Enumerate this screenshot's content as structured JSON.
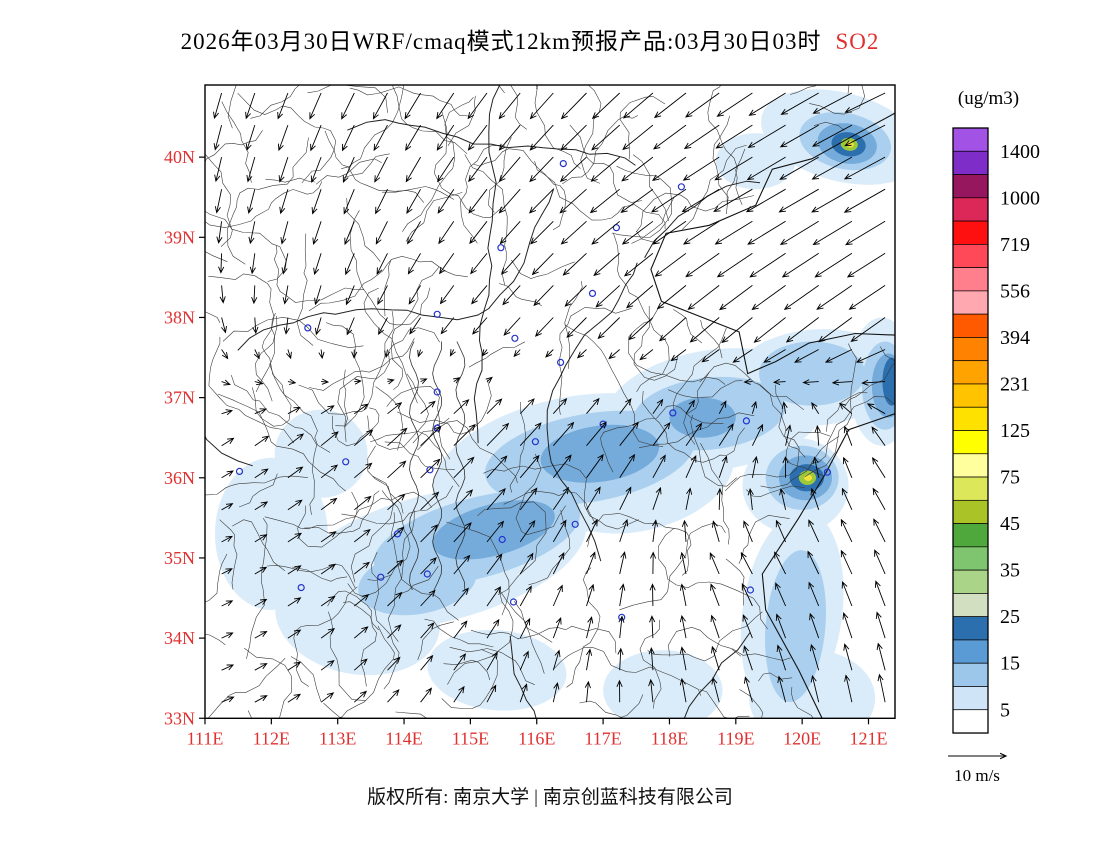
{
  "title": {
    "main": "2026年03月30日WRF/cmaq模式12km预报产品:03月30日03时",
    "species": "SO2"
  },
  "footer": {
    "left": "版权所有: 南京大学",
    "divider": "|",
    "right": "南京创蓝科技有限公司"
  },
  "chart_data": {
    "type": "map",
    "pollutant": "SO2",
    "units": "(ug/m3)",
    "lon_range": [
      111,
      121.4
    ],
    "lat_range": [
      33,
      40.9
    ],
    "lon_tick_labels": [
      "111E",
      "112E",
      "113E",
      "114E",
      "115E",
      "116E",
      "117E",
      "118E",
      "119E",
      "120E",
      "121E"
    ],
    "lat_tick_labels": [
      "40N",
      "39N",
      "38N",
      "37N",
      "36N",
      "35N",
      "34N",
      "33N"
    ],
    "axis_label_color": "#e03030",
    "colorbar": {
      "labels": [
        "1400",
        "1000",
        "719",
        "556",
        "394",
        "231",
        "125",
        "75",
        "45",
        "35",
        "25",
        "15",
        "5"
      ],
      "colors": [
        "#A352E6",
        "#7F2DC8",
        "#97175E",
        "#DC2858",
        "#FF1010",
        "#FF4858",
        "#FF808C",
        "#FFA8B0",
        "#FF5A00",
        "#FF8200",
        "#FFA300",
        "#FFC300",
        "#FFE100",
        "#FFFF00",
        "#FFFF9E",
        "#DCE85A",
        "#AAC428",
        "#4FA83C",
        "#7FC46E",
        "#AAD488",
        "#D2DFC0",
        "#2C6FAE",
        "#5B9BD5",
        "#9CC7EB",
        "#CFE5F7",
        "#FFFFFF"
      ]
    },
    "wind_scale": {
      "label": "10 m/s"
    },
    "wind_grid": {
      "lons": [
        111,
        113,
        115,
        117,
        119,
        121.4
      ],
      "lats": [
        33,
        35,
        36.5,
        38,
        39.5,
        40.9
      ],
      "dir": [
        [
          20,
          40,
          60,
          90,
          105,
          100
        ],
        [
          25,
          35,
          50,
          70,
          120,
          115
        ],
        [
          30,
          40,
          45,
          50,
          55,
          130
        ],
        [
          290,
          250,
          230,
          225,
          220,
          215
        ],
        [
          260,
          250,
          235,
          220,
          210,
          210
        ],
        [
          255,
          245,
          235,
          225,
          215,
          205
        ]
      ],
      "speed": [
        [
          0.25,
          0.3,
          0.35,
          0.4,
          0.5,
          0.55
        ],
        [
          0.2,
          0.35,
          0.5,
          0.45,
          0.45,
          0.5
        ],
        [
          0.25,
          0.45,
          0.6,
          0.6,
          0.5,
          0.45
        ],
        [
          0.3,
          0.35,
          0.4,
          0.55,
          0.75,
          0.8
        ],
        [
          0.45,
          0.5,
          0.55,
          0.7,
          0.85,
          0.9
        ],
        [
          0.5,
          0.55,
          0.6,
          0.7,
          0.8,
          0.85
        ]
      ]
    },
    "blob_colors": [
      "#DAECF9",
      "#ABD0EF",
      "#74ABDB",
      "#2C6FAE",
      "#9CC83C",
      "#F2E33C"
    ],
    "so2_blobs": [
      [
        114.5,
        35.0,
        2.3,
        0.8,
        -14,
        0
      ],
      [
        116.5,
        36.15,
        2.1,
        0.85,
        -12,
        0
      ],
      [
        118.7,
        36.85,
        1.7,
        0.75,
        -8,
        0
      ],
      [
        120.2,
        37.25,
        1.3,
        0.6,
        -5,
        0
      ],
      [
        113.3,
        34.25,
        1.25,
        0.7,
        10,
        0
      ],
      [
        112.0,
        35.3,
        0.85,
        0.95,
        0,
        0
      ],
      [
        112.75,
        36.3,
        0.7,
        0.55,
        0,
        0
      ],
      [
        115.4,
        33.6,
        1.05,
        0.5,
        5,
        0
      ],
      [
        117.9,
        33.35,
        0.9,
        0.5,
        0,
        0
      ],
      [
        119.85,
        34.3,
        0.75,
        1.3,
        8,
        0
      ],
      [
        120.15,
        33.25,
        0.95,
        0.6,
        0,
        0
      ],
      [
        120.6,
        40.25,
        1.25,
        0.55,
        15,
        0
      ],
      [
        119.3,
        39.95,
        0.6,
        0.35,
        0,
        0
      ],
      [
        121.2,
        37.2,
        0.5,
        0.8,
        0,
        0
      ],
      [
        117.6,
        36.0,
        1.4,
        0.65,
        -15,
        0
      ],
      [
        119.9,
        35.9,
        0.8,
        0.6,
        0,
        0
      ],
      [
        115.1,
        35.25,
        1.6,
        0.5,
        -15,
        1
      ],
      [
        116.8,
        36.25,
        1.6,
        0.55,
        -10,
        1
      ],
      [
        118.6,
        36.8,
        1.15,
        0.45,
        -6,
        1
      ],
      [
        114.2,
        34.7,
        0.9,
        0.4,
        -10,
        1
      ],
      [
        120.15,
        37.3,
        0.8,
        0.4,
        0,
        1
      ],
      [
        119.9,
        34.15,
        0.45,
        0.95,
        5,
        1
      ],
      [
        120.65,
        40.2,
        0.7,
        0.35,
        12,
        1
      ],
      [
        121.25,
        37.15,
        0.35,
        0.55,
        0,
        1
      ],
      [
        120.0,
        36.0,
        0.55,
        0.4,
        0,
        1
      ],
      [
        115.35,
        35.35,
        0.95,
        0.32,
        -15,
        2
      ],
      [
        116.95,
        36.3,
        0.9,
        0.35,
        -8,
        2
      ],
      [
        118.5,
        36.75,
        0.5,
        0.25,
        0,
        2
      ],
      [
        120.05,
        36.0,
        0.4,
        0.28,
        0,
        2
      ],
      [
        120.68,
        40.17,
        0.45,
        0.25,
        10,
        2
      ],
      [
        121.3,
        37.15,
        0.25,
        0.4,
        0,
        2
      ],
      [
        120.07,
        36.0,
        0.26,
        0.17,
        0,
        3
      ],
      [
        120.7,
        40.16,
        0.26,
        0.15,
        10,
        3
      ],
      [
        121.35,
        37.2,
        0.14,
        0.3,
        0,
        3
      ],
      [
        120.08,
        36.0,
        0.13,
        0.09,
        0,
        4
      ],
      [
        120.71,
        40.16,
        0.13,
        0.08,
        10,
        4
      ],
      [
        120.09,
        36.0,
        0.06,
        0.04,
        0,
        5
      ],
      [
        120.72,
        40.16,
        0.06,
        0.04,
        10,
        5
      ]
    ],
    "cities": [
      [
        116.4,
        39.92
      ],
      [
        117.2,
        39.12
      ],
      [
        118.18,
        39.63
      ],
      [
        115.46,
        38.87
      ],
      [
        114.5,
        38.04
      ],
      [
        112.55,
        37.87
      ],
      [
        114.5,
        37.07
      ],
      [
        114.5,
        36.62
      ],
      [
        114.39,
        36.1
      ],
      [
        113.9,
        35.3
      ],
      [
        113.65,
        34.76
      ],
      [
        112.45,
        34.63
      ],
      [
        114.35,
        34.8
      ],
      [
        117.0,
        36.67
      ],
      [
        118.05,
        36.81
      ],
      [
        119.16,
        36.71
      ],
      [
        120.38,
        36.07
      ],
      [
        115.98,
        36.45
      ],
      [
        116.36,
        37.44
      ],
      [
        116.84,
        38.3
      ],
      [
        115.67,
        37.74
      ],
      [
        115.48,
        35.23
      ],
      [
        116.58,
        35.42
      ],
      [
        117.28,
        34.26
      ],
      [
        115.65,
        34.45
      ],
      [
        119.22,
        34.6
      ],
      [
        111.52,
        36.08
      ],
      [
        113.12,
        36.2
      ]
    ],
    "coastlines": {
      "bohai": [
        [
          121.4,
          40.55
        ],
        [
          120.8,
          40.28
        ],
        [
          120.15,
          39.98
        ],
        [
          119.55,
          39.85
        ],
        [
          119.3,
          39.4
        ],
        [
          118.6,
          39.15
        ],
        [
          117.95,
          39.05
        ],
        [
          117.72,
          38.6
        ],
        [
          117.88,
          38.2
        ],
        [
          118.5,
          38.0
        ],
        [
          119.05,
          37.82
        ],
        [
          119.18,
          37.3
        ],
        [
          119.6,
          37.45
        ],
        [
          120.1,
          37.68
        ],
        [
          120.8,
          37.8
        ],
        [
          121.4,
          37.78
        ]
      ],
      "yellow_sea": [
        [
          121.4,
          36.8
        ],
        [
          120.7,
          36.6
        ],
        [
          120.35,
          36.05
        ],
        [
          119.95,
          35.5
        ],
        [
          119.4,
          34.8
        ],
        [
          119.45,
          34.35
        ],
        [
          119.95,
          33.6
        ],
        [
          120.3,
          33.0
        ],
        [
          121.4,
          33.0
        ]
      ]
    }
  }
}
